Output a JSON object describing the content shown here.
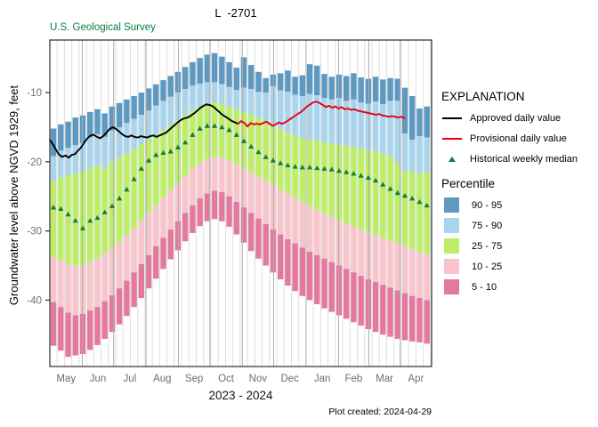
{
  "header": {
    "title": "L  -2701",
    "agency": "U.S. Geological Survey",
    "plot_created": "Plot created: 2024-04-29"
  },
  "axes": {
    "y_label": "Groundwater level above NGVD 1929, feet",
    "x_label": "2023 - 2024",
    "y_ticks": [
      -10,
      -20,
      -30,
      -40
    ],
    "months": [
      "May",
      "Jun",
      "Jul",
      "Aug",
      "Sep",
      "Oct",
      "Nov",
      "Dec",
      "Jan",
      "Feb",
      "Mar",
      "Apr"
    ]
  },
  "legend": {
    "title": "EXPLANATION",
    "approved_label": "Approved daily value",
    "provisional_label": "Provisional daily value",
    "median_label": "Historical weekly median",
    "percentile_title": "Percentile",
    "bands": [
      {
        "label": "90 - 95",
        "color": "#5E99C2"
      },
      {
        "label": "75 - 90",
        "color": "#A9D4EE"
      },
      {
        "label": "25 - 75",
        "color": "#BCEE68"
      },
      {
        "label": "10 - 25",
        "color": "#F9C4CB"
      },
      {
        "label": "5 - 10",
        "color": "#E3799F"
      }
    ]
  },
  "colors": {
    "approved": "#000000",
    "provisional": "#E8000D",
    "median": "#1B7A3F",
    "grid_week": "#DFDFDF",
    "grid_month": "#ACACAC",
    "axis": "#2B2B2B",
    "tick_label": "#6E6E6E"
  },
  "chart_data": {
    "type": "percentile_bands_with_lines",
    "title": "L  -2701",
    "xlabel": "2023 - 2024",
    "ylabel": "Groundwater level above NGVD 1929, feet",
    "x_unit": "days from May 1",
    "x_range_days": [
      0,
      365
    ],
    "ylim": [
      -49.6,
      -2.4
    ],
    "month_boundaries_days": [
      0,
      31,
      61,
      92,
      123,
      153,
      184,
      214,
      245,
      276,
      305,
      335,
      365
    ],
    "weekly_percentiles": {
      "start_day": 0,
      "step_days": 7,
      "p95": [
        -15.2,
        -14.6,
        -14.2,
        -13.6,
        -13.3,
        -12.8,
        -12.4,
        -13.0,
        -12.0,
        -11.5,
        -11.0,
        -10.5,
        -10.0,
        -9.4,
        -8.8,
        -8.2,
        -7.6,
        -7.0,
        -6.3,
        -5.6,
        -5.0,
        -4.5,
        -4.3,
        -4.8,
        -5.6,
        -6.4,
        -4.9,
        -6.0,
        -7.0,
        -7.9,
        -7.4,
        -7.2,
        -6.8,
        -7.7,
        -7.5,
        -5.9,
        -6.1,
        -7.3,
        -7.7,
        -7.4,
        -7.6,
        -7.2,
        -7.8,
        -8.0,
        -7.7,
        -8.1,
        -7.9,
        -8.0,
        -9.3,
        -10.5,
        -12.3,
        -12.0
      ],
      "p90": [
        -19.2,
        -18.4,
        -18.0,
        -17.6,
        -17.3,
        -16.5,
        -16.0,
        -16.4,
        -15.5,
        -15.0,
        -14.4,
        -13.8,
        -13.2,
        -12.6,
        -11.9,
        -11.2,
        -10.6,
        -10.0,
        -9.5,
        -9.0,
        -8.7,
        -8.5,
        -8.5,
        -8.8,
        -9.2,
        -9.6,
        -9.3,
        -9.5,
        -9.9,
        -10.0,
        -9.1,
        -9.7,
        -9.9,
        -10.3,
        -10.5,
        -10.2,
        -10.4,
        -10.8,
        -11.0,
        -10.8,
        -11.2,
        -11.0,
        -11.4,
        -11.6,
        -11.3,
        -11.7,
        -11.2,
        -11.2,
        -15.9,
        -16.8,
        -16.3,
        -16.5
      ],
      "p75": [
        -22.8,
        -22.3,
        -22.0,
        -21.7,
        -21.4,
        -21.0,
        -20.6,
        -20.9,
        -20.0,
        -19.4,
        -18.8,
        -18.2,
        -17.5,
        -16.8,
        -16.1,
        -15.4,
        -14.7,
        -14.0,
        -13.3,
        -12.6,
        -12.0,
        -11.6,
        -11.4,
        -11.6,
        -12.0,
        -12.5,
        -12.8,
        -13.2,
        -13.6,
        -14.2,
        -14.8,
        -15.3,
        -15.8,
        -16.2,
        -16.6,
        -16.8,
        -17.0,
        -17.2,
        -17.4,
        -17.5,
        -17.7,
        -17.9,
        -18.1,
        -18.3,
        -18.5,
        -18.8,
        -19.2,
        -20.1,
        -21.3,
        -21.4,
        -21.7,
        -21.5
      ],
      "p25": [
        -33.8,
        -34.2,
        -34.8,
        -35.1,
        -35.0,
        -34.5,
        -34.0,
        -33.3,
        -32.5,
        -31.6,
        -30.6,
        -29.6,
        -28.5,
        -27.4,
        -26.3,
        -25.2,
        -24.1,
        -23.0,
        -22.0,
        -21.0,
        -20.2,
        -19.6,
        -19.3,
        -19.4,
        -19.8,
        -20.4,
        -21.0,
        -21.6,
        -22.2,
        -22.8,
        -23.4,
        -24.0,
        -24.6,
        -25.2,
        -25.8,
        -26.4,
        -27.0,
        -27.5,
        -28.0,
        -28.5,
        -29.0,
        -29.4,
        -29.8,
        -30.2,
        -30.6,
        -31.0,
        -31.4,
        -31.8,
        -32.2,
        -32.6,
        -33.0,
        -33.4
      ],
      "p10": [
        -40.3,
        -41.0,
        -41.8,
        -42.2,
        -42.0,
        -41.5,
        -41.0,
        -40.2,
        -39.3,
        -38.3,
        -37.2,
        -36.0,
        -34.8,
        -33.5,
        -32.2,
        -31.0,
        -29.8,
        -28.6,
        -27.4,
        -26.3,
        -25.3,
        -24.6,
        -24.2,
        -24.4,
        -25.0,
        -25.8,
        -26.6,
        -27.4,
        -28.2,
        -29.0,
        -29.8,
        -30.5,
        -31.2,
        -31.8,
        -32.4,
        -33.0,
        -33.5,
        -34.0,
        -34.5,
        -35.0,
        -35.5,
        -36.0,
        -36.5,
        -37.0,
        -37.4,
        -37.8,
        -38.2,
        -38.6,
        -39.0,
        -39.4,
        -39.7,
        -40.0
      ],
      "p5": [
        -46.6,
        -47.3,
        -48.2,
        -48.0,
        -47.8,
        -47.2,
        -46.5,
        -45.6,
        -44.6,
        -43.5,
        -42.3,
        -41.0,
        -39.7,
        -38.3,
        -36.9,
        -35.5,
        -34.1,
        -32.8,
        -31.5,
        -30.3,
        -29.3,
        -28.6,
        -28.3,
        -28.6,
        -29.4,
        -30.5,
        -31.7,
        -32.9,
        -34.0,
        -35.0,
        -36.0,
        -37.0,
        -37.9,
        -38.7,
        -39.4,
        -40.0,
        -40.6,
        -41.2,
        -41.7,
        -42.2,
        -42.7,
        -43.2,
        -43.7,
        -44.2,
        -44.6,
        -45.0,
        -45.3,
        -45.6,
        -45.8,
        -46.0,
        -46.1,
        -46.3
      ]
    },
    "approved_daily": {
      "name": "Approved daily value",
      "start_day": 0,
      "step_days": 3,
      "values": [
        -16.8,
        -17.5,
        -18.3,
        -19.0,
        -19.3,
        -19.1,
        -19.4,
        -19.0,
        -18.9,
        -18.4,
        -17.9,
        -17.2,
        -16.6,
        -16.2,
        -16.1,
        -16.4,
        -16.6,
        -16.3,
        -15.8,
        -15.3,
        -15.0,
        -15.2,
        -15.6,
        -16.0,
        -16.3,
        -16.4,
        -16.2,
        -16.4,
        -16.5,
        -16.3,
        -16.4,
        -16.5,
        -16.3,
        -16.2,
        -16.4,
        -16.2,
        -16.0,
        -15.8,
        -15.4,
        -15.0,
        -14.6,
        -14.2,
        -13.9,
        -13.7,
        -13.6,
        -13.3,
        -13.0,
        -12.6,
        -12.2,
        -11.9,
        -11.7,
        -11.8,
        -12.0,
        -12.4,
        -12.8,
        -13.2,
        -13.5,
        -13.8,
        -14.1,
        -14.3,
        -14.5
      ]
    },
    "provisional_daily": {
      "name": "Provisional daily value",
      "start_day": 180,
      "step_days": 3,
      "values": [
        -14.5,
        -14.1,
        -14.4,
        -14.9,
        -14.4,
        -14.6,
        -14.5,
        -14.6,
        -14.4,
        -14.2,
        -14.5,
        -14.8,
        -14.6,
        -14.3,
        -14.5,
        -14.3,
        -14.0,
        -13.7,
        -13.4,
        -13.1,
        -12.8,
        -12.4,
        -12.0,
        -11.7,
        -11.4,
        -11.3,
        -11.5,
        -11.8,
        -12.1,
        -11.9,
        -12.2,
        -12.0,
        -12.3,
        -12.1,
        -12.4,
        -12.3,
        -12.5,
        -12.4,
        -12.6,
        -12.7,
        -12.8,
        -12.9,
        -13.0,
        -13.1,
        -13.2,
        -13.1,
        -13.3,
        -13.4,
        -13.5,
        -13.4,
        -13.5,
        -13.6,
        -13.5,
        -13.7
      ]
    },
    "historical_weekly_median": {
      "name": "Historical weekly median",
      "start_day": 3.5,
      "step_days": 7,
      "values": [
        -26.6,
        -26.8,
        -27.6,
        -28.5,
        -29.6,
        -28.5,
        -28.1,
        -27.3,
        -26.4,
        -25.3,
        -24.0,
        -22.5,
        -21.0,
        -19.8,
        -19.0,
        -18.7,
        -18.5,
        -17.9,
        -17.2,
        -16.1,
        -15.2,
        -14.8,
        -14.8,
        -15.0,
        -15.4,
        -16.1,
        -17.0,
        -17.8,
        -18.6,
        -19.3,
        -19.8,
        -20.2,
        -20.5,
        -20.7,
        -20.8,
        -20.8,
        -20.9,
        -21.0,
        -21.1,
        -21.3,
        -21.5,
        -21.7,
        -22.0,
        -22.3,
        -22.7,
        -23.3,
        -23.9,
        -24.5,
        -24.9,
        -25.3,
        -25.8,
        -26.3
      ]
    }
  }
}
